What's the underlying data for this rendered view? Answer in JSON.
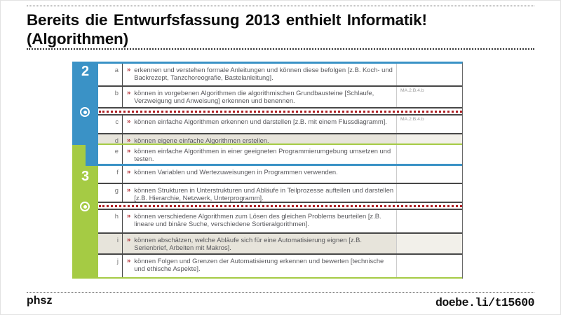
{
  "slide": {
    "title_line1": "Bereits die Entwurfsfassung 2013 enthielt Informatik!",
    "title_line2": "(Algorithmen)",
    "footer_left": "phsz",
    "footer_right": "doebe.li/t15600"
  },
  "colors": {
    "cycle2_blue": "#3A92C6",
    "cycle3_green": "#A5CB44",
    "accent_red": "#AE2025",
    "shaded_row": "#E7E4DB",
    "shaded_label": "#F2F0EA"
  },
  "table": {
    "cycle2_label": "2",
    "cycle3_label": "3",
    "chevron": "»",
    "rows": [
      {
        "letter": "a",
        "text": "erkennen und verstehen formale Anleitungen und können diese befolgen [z.B. Koch- und Backrezept, Tanzchoreografie, Bastelanleitung].",
        "label": "",
        "shaded": false
      },
      {
        "letter": "b",
        "text": "können in vorgebenen Algorithmen die algorithmischen Grundbausteine [Schlaufe, Verzweigung und Anweisung] erkennen und benennen.",
        "label": "MA.2.B.4.b",
        "shaded": false
      },
      {
        "letter": "c",
        "text": "können einfache Algorithmen erkennen und darstellen [z.B. mit einem Flussdiagramm].",
        "label": "MA.2.B.4.b",
        "shaded": false
      },
      {
        "letter": "d",
        "text": "können eigene einfache Algorithmen erstellen.",
        "label": "",
        "shaded": true
      },
      {
        "letter": "e",
        "text": "können einfache Algorithmen in einer geeigneten Programmierumgebung umsetzen und testen.",
        "label": "",
        "shaded": false
      },
      {
        "letter": "f",
        "text": "können Variablen und Wertezuweisungen in Programmen verwenden.",
        "label": "",
        "shaded": false
      },
      {
        "letter": "g",
        "text": "können Strukturen in Unterstrukturen und Abläufe in Teilprozesse aufteilen und darstellen [z.B. Hierarchie, Netzwerk, Unterprogramm].",
        "label": "",
        "shaded": false
      },
      {
        "letter": "h",
        "text": "können verschiedene Algorithmen zum Lösen des gleichen Problems beurteilen [z.B. lineare und binäre Suche, verschiedene Sortieralgorithmen].",
        "label": "",
        "shaded": false
      },
      {
        "letter": "i",
        "text": "können abschätzen, welche Abläufe sich für eine Automatisierung eignen [z.B. Serienbrief, Arbeiten mit Makros].",
        "label": "",
        "shaded": true
      },
      {
        "letter": "j",
        "text": "können Folgen und Grenzen der Automatisierung erkennen und bewerten [technische und ethische Aspekte].",
        "label": "",
        "shaded": false
      }
    ]
  }
}
